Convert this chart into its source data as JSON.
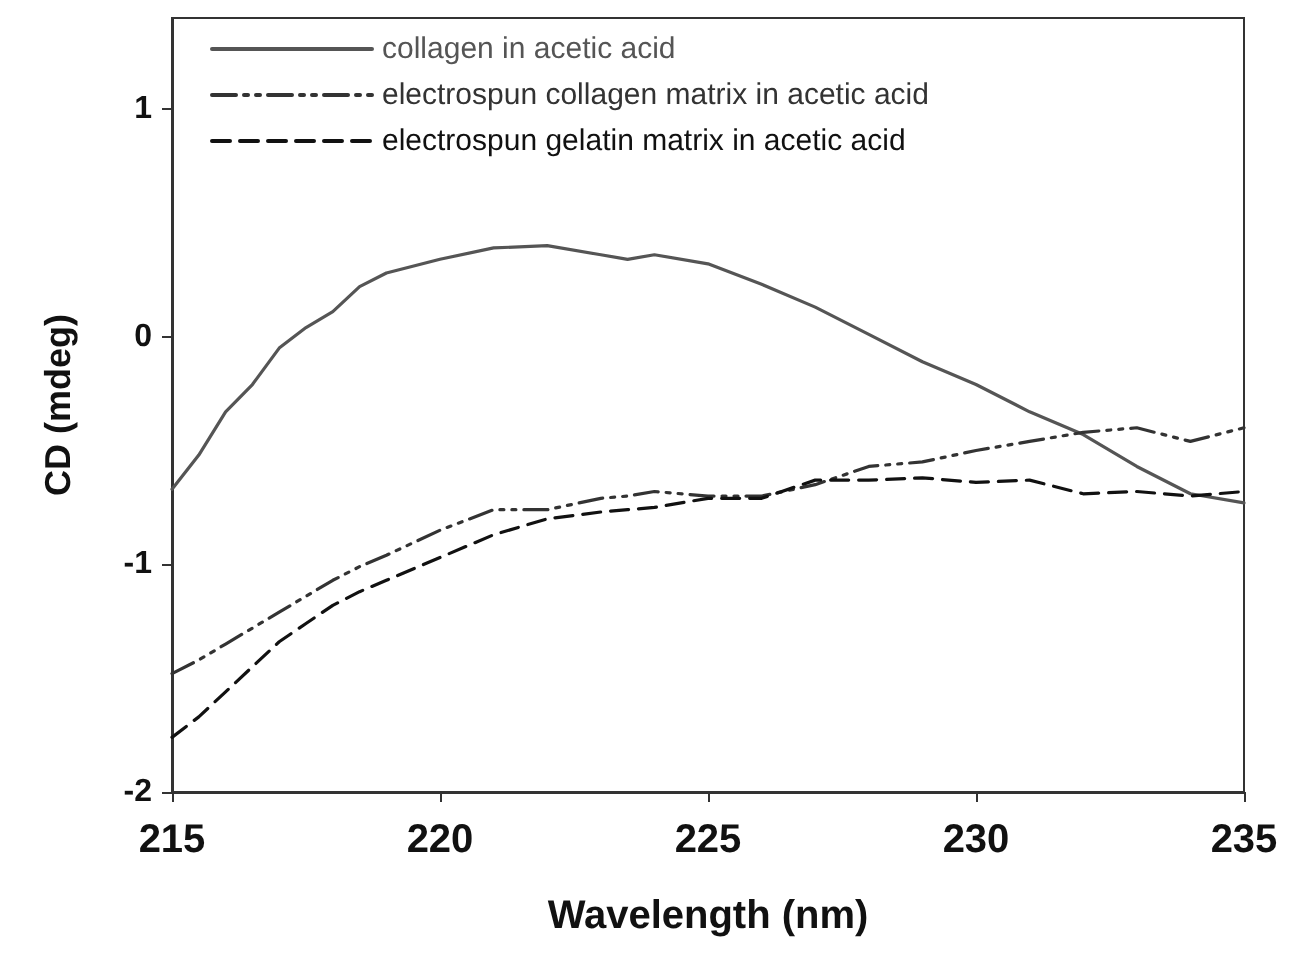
{
  "chart_data": {
    "type": "line",
    "xlabel": "Wavelength (nm)",
    "ylabel": "CD (mdeg)",
    "x": [
      215,
      215.5,
      216,
      216.5,
      217,
      217.5,
      218,
      218.5,
      219,
      220,
      221,
      222,
      223,
      223.5,
      224,
      225,
      226,
      227,
      228,
      229,
      230,
      231,
      232,
      233,
      234,
      235
    ],
    "series": [
      {
        "name": "collagen in acetic acid",
        "color": "#555555",
        "line_style": "solid",
        "values": [
          -0.67,
          -0.52,
          -0.33,
          -0.21,
          -0.05,
          0.04,
          0.11,
          0.22,
          0.28,
          0.34,
          0.39,
          0.4,
          0.36,
          0.34,
          0.36,
          0.32,
          0.23,
          0.13,
          0.01,
          -0.11,
          -0.21,
          -0.33,
          -0.43,
          -0.57,
          -0.69,
          -0.73
        ]
      },
      {
        "name": "electrospun collagen matrix in acetic acid",
        "color": "#333333",
        "line_style": "dashdotdot",
        "values": [
          -1.48,
          -1.42,
          -1.35,
          -1.28,
          -1.21,
          -1.14,
          -1.07,
          -1.01,
          -0.96,
          -0.85,
          -0.76,
          -0.76,
          -0.71,
          -0.7,
          -0.68,
          -0.7,
          -0.7,
          -0.65,
          -0.57,
          -0.55,
          -0.5,
          -0.46,
          -0.42,
          -0.4,
          -0.46,
          -0.4
        ]
      },
      {
        "name": "electrospun gelatin matrix in acetic acid",
        "color": "#111111",
        "line_style": "dashed",
        "values": [
          -1.76,
          -1.67,
          -1.56,
          -1.45,
          -1.34,
          -1.26,
          -1.18,
          -1.12,
          -1.07,
          -0.97,
          -0.87,
          -0.8,
          -0.77,
          -0.76,
          -0.75,
          -0.71,
          -0.71,
          -0.63,
          -0.63,
          -0.62,
          -0.64,
          -0.63,
          -0.69,
          -0.68,
          -0.7,
          -0.68
        ]
      }
    ],
    "xlim": [
      215,
      235
    ],
    "xticks": [
      215,
      220,
      225,
      230,
      235
    ],
    "ylim": [
      -2,
      1.4
    ],
    "yticks": [
      -2,
      -1,
      0,
      1
    ],
    "grid": false,
    "legend": "top left",
    "marker": "none"
  }
}
